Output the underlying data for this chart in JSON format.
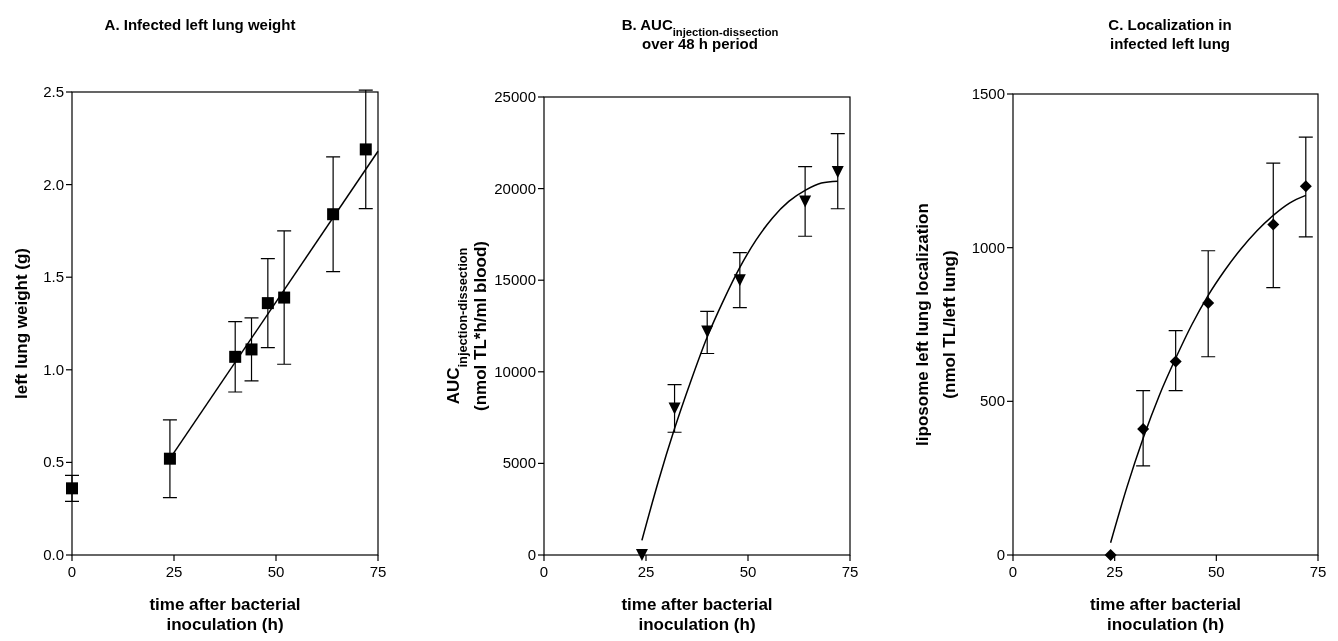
{
  "chart_data": [
    {
      "type": "scatter",
      "title": "A. Infected left lung weight",
      "xlabel": "time after bacterial\ninoculation (h)",
      "ylabel": "left lung weight (g)",
      "xlim": [
        0,
        75
      ],
      "xticks": [
        0,
        25,
        50,
        75
      ],
      "ylim": [
        0,
        2.5
      ],
      "yticks": [
        {
          "value": 0,
          "label": "0.0"
        },
        {
          "value": 0.5,
          "label": "0.5"
        },
        {
          "value": 1,
          "label": "1.0"
        },
        {
          "value": 1.5,
          "label": "1.5"
        },
        {
          "value": 2,
          "label": "2.0"
        },
        {
          "value": 2.5,
          "label": "2.5"
        }
      ],
      "series": [
        {
          "color": "#000000",
          "marker": "square",
          "x": [
            0,
            24,
            40,
            44,
            48,
            52,
            64,
            72
          ],
          "values": [
            0.36,
            0.52,
            1.07,
            1.11,
            1.36,
            1.39,
            1.84,
            2.19
          ],
          "errors": [
            [
              0.29,
              0.43
            ],
            [
              0.31,
              0.73
            ],
            [
              0.88,
              1.26
            ],
            [
              0.94,
              1.28
            ],
            [
              1.12,
              1.6
            ],
            [
              1.03,
              1.75
            ],
            [
              1.53,
              2.15
            ],
            [
              1.87,
              2.51
            ]
          ]
        },
        {
          "type": "line",
          "color": "#000000",
          "marker": "none",
          "line_style": "solid",
          "x": [
            24,
            75
          ],
          "values": [
            0.52,
            2.18
          ]
        }
      ]
    },
    {
      "type": "scatter",
      "title": "B. AUC$_{injection-dissection}$\nover 48 h period",
      "xlabel": "time after bacterial\ninoculation (h)",
      "ylabel": "AUC$_{injection-dissection}$\n(nmol TL*h/ml blood)",
      "xlim": [
        0,
        75
      ],
      "xticks": [
        0,
        25,
        50,
        75
      ],
      "ylim": [
        0,
        25000
      ],
      "yticks": [
        0,
        5000,
        10000,
        15000,
        20000,
        25000
      ],
      "series": [
        {
          "color": "#000000",
          "marker": "triangle",
          "x": [
            24,
            32,
            40,
            48,
            64,
            72
          ],
          "values": [
            0,
            8000,
            12200,
            15000,
            19300,
            20900
          ],
          "errors": [
            null,
            [
              6700,
              9300
            ],
            [
              11000,
              13300
            ],
            [
              13500,
              16500
            ],
            [
              17400,
              21200
            ],
            [
              18900,
              23000
            ]
          ]
        },
        {
          "type": "line",
          "color": "#000000",
          "marker": "none",
          "line_style": "solid",
          "x": [
            24,
            28,
            32,
            36,
            40,
            44,
            48,
            52,
            56,
            60,
            64,
            68,
            72
          ],
          "values": [
            800,
            4000,
            6900,
            9500,
            11900,
            13900,
            15700,
            17200,
            18400,
            19300,
            19900,
            20300,
            20400
          ]
        }
      ]
    },
    {
      "type": "scatter",
      "title": "C. Localization in\ninfected left lung",
      "xlabel": "time after bacterial\ninoculation (h)",
      "ylabel": "liposome left lung localization\n(nmol TL/left lung)",
      "xlim": [
        0,
        75
      ],
      "xticks": [
        0,
        25,
        50,
        75
      ],
      "ylim": [
        0,
        1500
      ],
      "yticks": [
        0,
        500,
        1000,
        1500
      ],
      "series": [
        {
          "color": "#000000",
          "marker": "diamond",
          "x": [
            24,
            32,
            40,
            48,
            64,
            72
          ],
          "values": [
            0,
            410,
            630,
            820,
            1075,
            1200
          ],
          "errors": [
            null,
            [
              290,
              535
            ],
            [
              535,
              730
            ],
            [
              645,
              990
            ],
            [
              870,
              1275
            ],
            [
              1035,
              1360
            ]
          ]
        },
        {
          "type": "line",
          "color": "#000000",
          "marker": "none",
          "line_style": "solid",
          "x": [
            24,
            28,
            32,
            36,
            40,
            44,
            48,
            52,
            56,
            60,
            64,
            68,
            72
          ],
          "values": [
            40,
            220,
            380,
            520,
            640,
            750,
            845,
            925,
            995,
            1055,
            1105,
            1145,
            1170
          ]
        }
      ]
    }
  ]
}
